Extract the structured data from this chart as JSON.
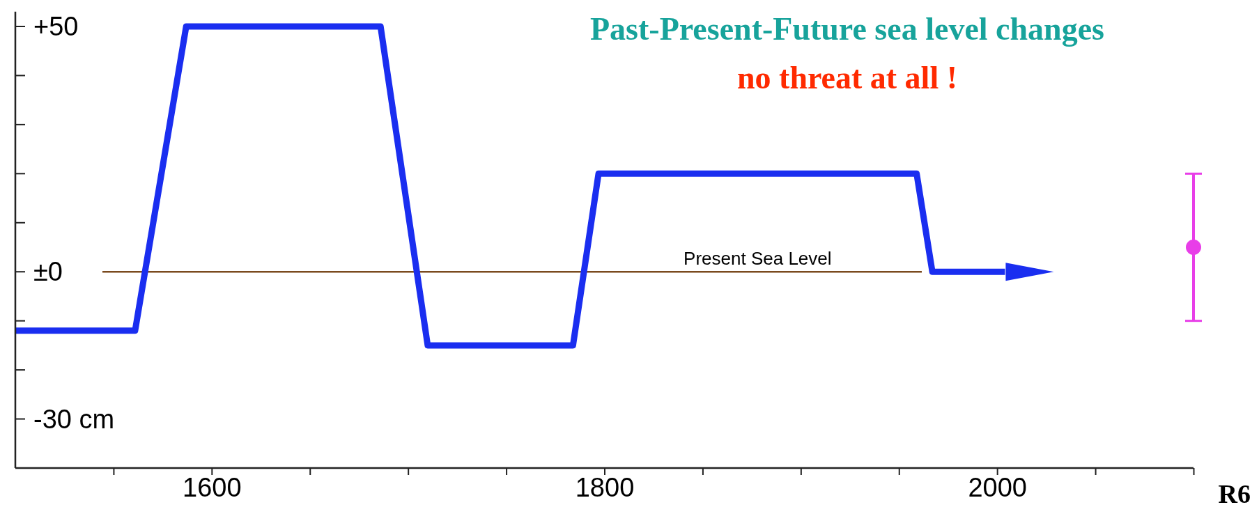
{
  "chart_data": {
    "type": "line",
    "title": "Past-Present-Future sea level changes",
    "subtitle": "no threat at all !",
    "series": [
      {
        "color": "#1a2ef0",
        "marker": "none",
        "x": [
          1500,
          1561,
          1587,
          1686,
          1710,
          1784,
          1797,
          1959,
          1967,
          2004
        ],
        "values": [
          -12,
          -12,
          50,
          50,
          -15,
          -15,
          20,
          20,
          0,
          0
        ]
      },
      {
        "type": "scatter",
        "color": "#e83ee8",
        "x": [
          2100
        ],
        "values": [
          5
        ],
        "errors": [
          [
            -10,
            20
          ]
        ]
      }
    ],
    "xlim": [
      1500,
      2100
    ],
    "xticks": [
      {
        "value": 1550,
        "label": null
      },
      1600,
      {
        "value": 1650,
        "label": null
      },
      {
        "value": 1700,
        "label": null
      },
      {
        "value": 1750,
        "label": null
      },
      1800,
      {
        "value": 1850,
        "label": null
      },
      {
        "value": 1900,
        "label": null
      },
      {
        "value": 1950,
        "label": null
      },
      2000,
      {
        "value": 2050,
        "label": null
      },
      {
        "value": 2100,
        "label": null
      }
    ],
    "ylim": [
      -40,
      53
    ],
    "yticks": [
      {
        "value": 50,
        "label": "+50"
      },
      {
        "value": 40,
        "label": null
      },
      {
        "value": 30,
        "label": null
      },
      {
        "value": 20,
        "label": null
      },
      {
        "value": 10,
        "label": null
      },
      {
        "value": 0,
        "label": "±0"
      },
      {
        "value": -10,
        "label": null
      },
      {
        "value": -20,
        "label": null
      },
      {
        "value": -30,
        "label": "-30 cm"
      }
    ],
    "ref_lines": [
      {
        "axis": "y",
        "value": 0,
        "label": "Present Sea Level",
        "color": "#7a4a1e"
      }
    ],
    "annotations": [
      "R6"
    ],
    "marker": "circle"
  }
}
